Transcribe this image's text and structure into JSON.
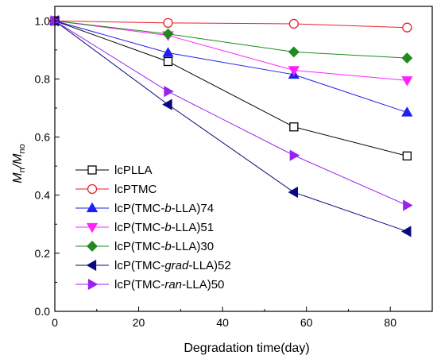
{
  "chart_data": {
    "type": "line",
    "xlabel": "Degradation time(day)",
    "ylabel": {
      "main": "M",
      "sub1": "n",
      "slash": "/M",
      "sub2": "no"
    },
    "xlim": [
      0,
      90
    ],
    "ylim": [
      0.0,
      1.05
    ],
    "xticks": [
      "0",
      "20",
      "40",
      "60",
      "80"
    ],
    "yticks": [
      "0.0",
      "0.2",
      "0.4",
      "0.6",
      "0.8",
      "1.0"
    ],
    "x": [
      0,
      27,
      57,
      84
    ],
    "legend_position": "bottom-left",
    "series": [
      {
        "name": "lcPLLA",
        "name_parts": [
          {
            "t": "lcPLLA",
            "i": false
          }
        ],
        "values": [
          1.0,
          0.86,
          0.635,
          0.535
        ],
        "color": "#000000",
        "marker": "square-open"
      },
      {
        "name": "lcPTMC",
        "name_parts": [
          {
            "t": "lcPTMC",
            "i": false
          }
        ],
        "values": [
          1.0,
          0.993,
          0.99,
          0.977
        ],
        "color": "#e8212d",
        "marker": "circle-open"
      },
      {
        "name": "lcP(TMC-b-LLA)74",
        "name_parts": [
          {
            "t": "lcP(TMC-",
            "i": false
          },
          {
            "t": "b",
            "i": true
          },
          {
            "t": "-LLA)74",
            "i": false
          }
        ],
        "values": [
          1.0,
          0.89,
          0.815,
          0.685
        ],
        "color": "#1f1ff0",
        "marker": "triangle-up"
      },
      {
        "name": "lcP(TMC-b-LLA)51",
        "name_parts": [
          {
            "t": "lcP(TMC-",
            "i": false
          },
          {
            "t": "b",
            "i": true
          },
          {
            "t": "-LLA)51",
            "i": false
          }
        ],
        "values": [
          1.0,
          0.95,
          0.83,
          0.795
        ],
        "color": "#ff22ff",
        "marker": "triangle-down"
      },
      {
        "name": "lcP(TMC-b-LLA)30",
        "name_parts": [
          {
            "t": "lcP(TMC-",
            "i": false
          },
          {
            "t": "b",
            "i": true
          },
          {
            "t": "-LLA)30",
            "i": false
          }
        ],
        "values": [
          1.0,
          0.955,
          0.893,
          0.872
        ],
        "color": "#1f8a1f",
        "marker": "diamond"
      },
      {
        "name": "lcP(TMC-grad-LLA)52",
        "name_parts": [
          {
            "t": "lcP(TMC-",
            "i": false
          },
          {
            "t": "grad",
            "i": true
          },
          {
            "t": "-LLA)52",
            "i": false
          }
        ],
        "values": [
          1.0,
          0.712,
          0.41,
          0.275
        ],
        "color": "#0a0a80",
        "marker": "triangle-left"
      },
      {
        "name": "lcP(TMC-ran-LLA)50",
        "name_parts": [
          {
            "t": "lcP(TMC-",
            "i": false
          },
          {
            "t": "ran",
            "i": true
          },
          {
            "t": "-LLA)50",
            "i": false
          }
        ],
        "values": [
          1.0,
          0.757,
          0.537,
          0.365
        ],
        "color": "#9a22ee",
        "marker": "triangle-right"
      }
    ]
  }
}
